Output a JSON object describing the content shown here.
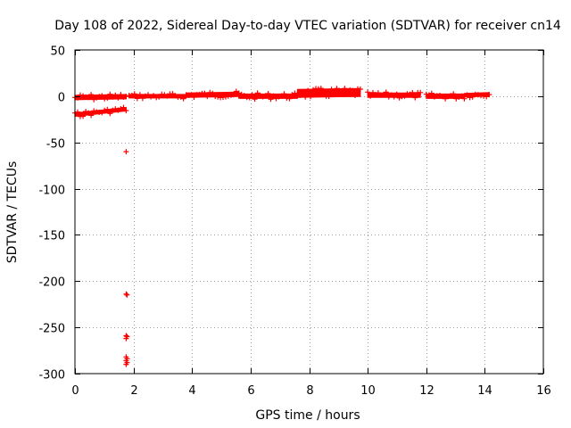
{
  "chart_data": {
    "type": "scatter",
    "title": "Day 108 of 2022, Sidereal Day-to-day VTEC variation (SDTVAR) for receiver cn14",
    "xlabel": "GPS time / hours",
    "ylabel": "SDTVAR / TECUs",
    "xlim": [
      0,
      16
    ],
    "ylim": [
      -300,
      50
    ],
    "xticks": [
      0,
      2,
      4,
      6,
      8,
      10,
      12,
      14,
      16
    ],
    "yticks": [
      50,
      0,
      -50,
      -100,
      -150,
      -200,
      -250,
      -300
    ],
    "grid": true,
    "marker": "+",
    "series": [
      {
        "name": "SDTVAR",
        "color": "#ff0000",
        "bands": [
          {
            "x_start": 0.0,
            "x_end": 1.75,
            "y_start": -1.5,
            "y_end": -0.5,
            "spread": 5
          },
          {
            "x_start": 0.0,
            "x_end": 1.75,
            "y_start": -20,
            "y_end": -14,
            "spread": 4
          },
          {
            "x_start": 1.85,
            "x_end": 3.8,
            "y_start": 0,
            "y_end": 0,
            "spread": 4
          },
          {
            "x_start": 3.8,
            "x_end": 5.6,
            "y_start": 1,
            "y_end": 2,
            "spread": 5
          },
          {
            "x_start": 5.6,
            "x_end": 7.6,
            "y_start": 0,
            "y_end": 0,
            "spread": 5
          },
          {
            "x_start": 7.6,
            "x_end": 9.75,
            "y_start": 3,
            "y_end": 4,
            "spread": 9
          },
          {
            "x_start": 10.0,
            "x_end": 11.8,
            "y_start": 1,
            "y_end": 1,
            "spread": 5
          },
          {
            "x_start": 12.0,
            "x_end": 13.3,
            "y_start": 0,
            "y_end": 0,
            "spread": 5
          },
          {
            "x_start": 13.3,
            "x_end": 14.15,
            "y_start": 1,
            "y_end": 2,
            "spread": 4
          }
        ],
        "points": [
          [
            1.75,
            -60
          ],
          [
            1.75,
            -214
          ],
          [
            1.78,
            -215
          ],
          [
            1.75,
            -259
          ],
          [
            1.78,
            -260
          ],
          [
            1.75,
            -262
          ],
          [
            1.75,
            -282
          ],
          [
            1.78,
            -284
          ],
          [
            1.75,
            -286
          ],
          [
            1.78,
            -288
          ],
          [
            1.75,
            -290
          ]
        ]
      }
    ]
  }
}
